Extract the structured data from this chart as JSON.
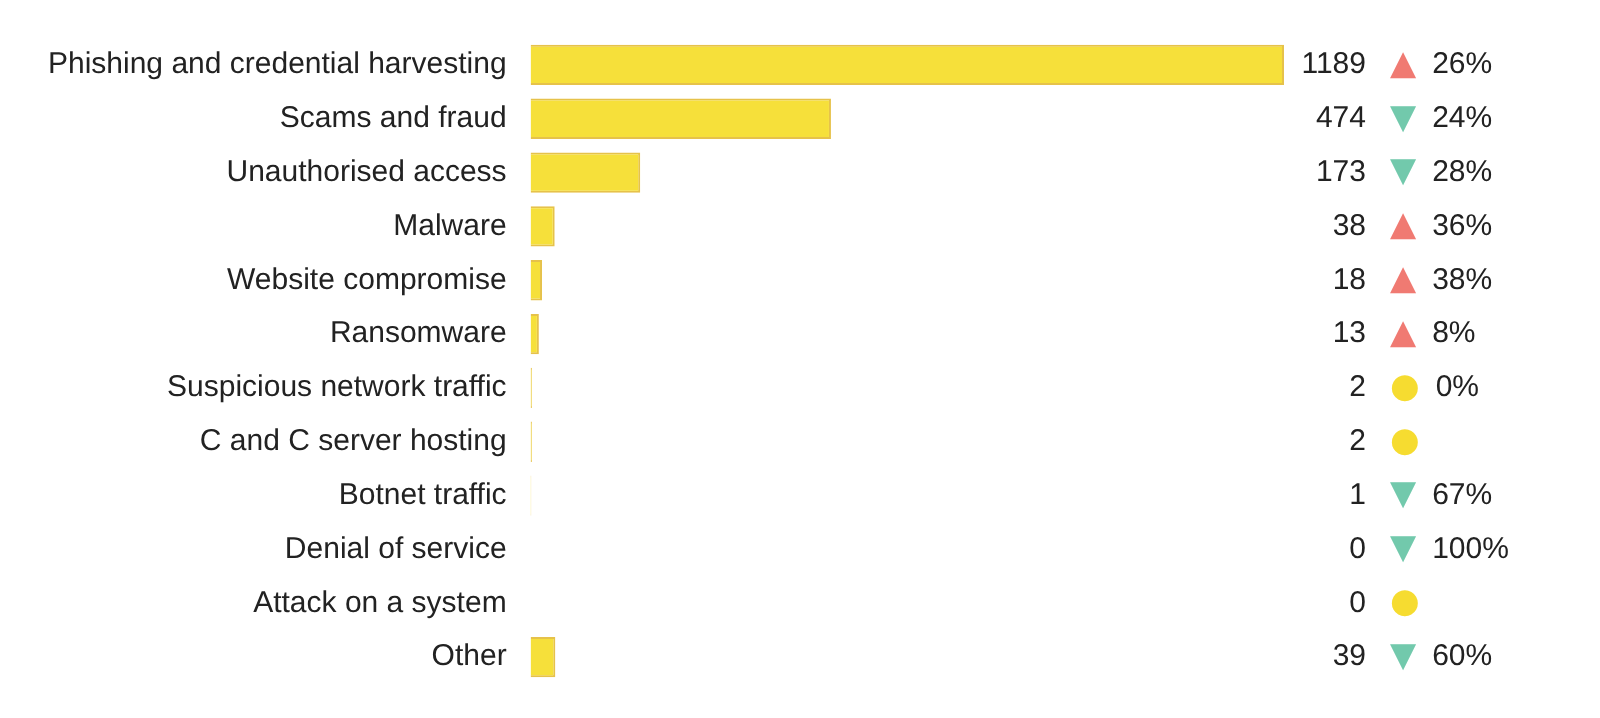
{
  "chart_data": {
    "type": "bar",
    "orientation": "horizontal",
    "categories": [
      "Phishing and credential harvesting",
      "Scams and fraud",
      "Unauthorised access",
      "Malware",
      "Website compromise",
      "Ransomware",
      "Suspicious network traffic",
      "C and C server hosting",
      "Botnet traffic",
      "Denial of service",
      "Attack on a system",
      "Other"
    ],
    "values": [
      1189,
      474,
      173,
      38,
      18,
      13,
      2,
      2,
      1,
      0,
      0,
      39
    ],
    "color": "#f6e03a",
    "data_labels": true,
    "annotations": [
      "▲ 26%",
      "▼ 24%",
      "▼ 28%",
      "▲ 36%",
      "▲ 38%",
      "▲ 8%",
      "● 0%",
      "●",
      "▼ 67%",
      "▼ 100%",
      "●",
      "▼ 60%"
    ],
    "grid": false,
    "legend": false
  }
}
